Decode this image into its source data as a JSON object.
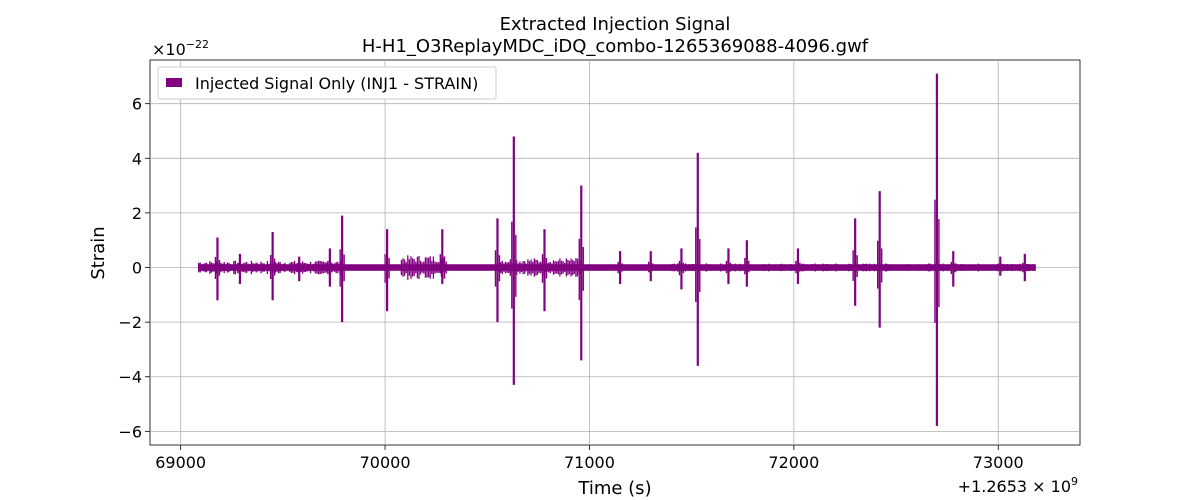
{
  "chart_data": {
    "type": "line",
    "title": "Extracted Injection Signal",
    "subtitle": "H-H1_O3ReplayMDC_iDQ_combo-1265369088-4096.gwf",
    "xlabel": "Time (s)",
    "ylabel": "Strain",
    "x_offset_label": "+1.2653 × 10",
    "x_offset_exponent": "9",
    "y_scale_label": "×10",
    "y_scale_exponent": "−22",
    "xlim": [
      68850,
      73400
    ],
    "ylim": [
      -6.5,
      7.6
    ],
    "x_ticks": [
      69000,
      70000,
      71000,
      72000,
      73000
    ],
    "x_tick_labels": [
      "69000",
      "70000",
      "71000",
      "72000",
      "73000"
    ],
    "y_ticks": [
      -6,
      -4,
      -2,
      0,
      2,
      4,
      6
    ],
    "y_tick_labels": [
      "−6",
      "−4",
      "−2",
      "0",
      "2",
      "4",
      "6"
    ],
    "grid": true,
    "legend": {
      "position": "top-left",
      "entries": [
        "Injected Signal Only (INJ1 - STRAIN)"
      ]
    },
    "series": [
      {
        "name": "Injected Signal Only (INJ1 - STRAIN)",
        "color": "#800080",
        "x_range": [
          69088,
          73184
        ],
        "spikes": [
          {
            "x": 69180,
            "up": 1.1,
            "down": -1.2
          },
          {
            "x": 69290,
            "up": 0.5,
            "down": -0.6
          },
          {
            "x": 69450,
            "up": 1.3,
            "down": -1.2
          },
          {
            "x": 69580,
            "up": 0.4,
            "down": -0.5
          },
          {
            "x": 69730,
            "up": 0.7,
            "down": -0.7
          },
          {
            "x": 69790,
            "up": 1.9,
            "down": -2.0
          },
          {
            "x": 70010,
            "up": 1.4,
            "down": -1.6
          },
          {
            "x": 70280,
            "up": 1.4,
            "down": -0.6
          },
          {
            "x": 70550,
            "up": 1.8,
            "down": -2.0
          },
          {
            "x": 70630,
            "up": 4.8,
            "down": -4.3
          },
          {
            "x": 70780,
            "up": 1.4,
            "down": -1.6
          },
          {
            "x": 70960,
            "up": 3.0,
            "down": -3.4
          },
          {
            "x": 71150,
            "up": 0.6,
            "down": -0.6
          },
          {
            "x": 71300,
            "up": 0.6,
            "down": -0.5
          },
          {
            "x": 71450,
            "up": 0.7,
            "down": -0.8
          },
          {
            "x": 71530,
            "up": 4.2,
            "down": -3.6
          },
          {
            "x": 71680,
            "up": 0.7,
            "down": -0.6
          },
          {
            "x": 71770,
            "up": 1.0,
            "down": -0.7
          },
          {
            "x": 72020,
            "up": 0.7,
            "down": -0.6
          },
          {
            "x": 72300,
            "up": 1.8,
            "down": -1.4
          },
          {
            "x": 72420,
            "up": 2.8,
            "down": -2.2
          },
          {
            "x": 72700,
            "up": 7.1,
            "down": -5.8
          },
          {
            "x": 72780,
            "up": 0.6,
            "down": -0.7
          },
          {
            "x": 73010,
            "up": 0.4,
            "down": -0.3
          },
          {
            "x": 73130,
            "up": 0.5,
            "down": -0.5
          }
        ],
        "noise_bands": [
          {
            "x0": 69088,
            "x1": 69800,
            "amp": 0.25
          },
          {
            "x0": 70080,
            "x1": 70300,
            "amp": 0.45
          },
          {
            "x0": 70550,
            "x1": 70960,
            "amp": 0.35
          },
          {
            "x0": 71400,
            "x1": 73184,
            "amp": 0.15
          }
        ]
      }
    ]
  }
}
